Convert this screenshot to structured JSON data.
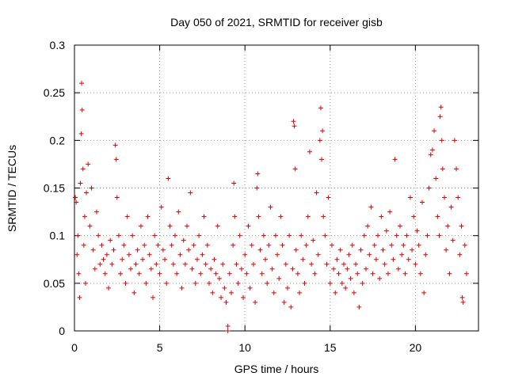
{
  "chart_data": {
    "type": "scatter",
    "title": "Day 050 of 2021, SRMTID for receiver gisb",
    "xlabel": "GPS time / hours",
    "ylabel": "SRMTID / TECUs",
    "xlim": [
      0,
      23.7
    ],
    "ylim": [
      0,
      0.3
    ],
    "x_ticks": [
      0,
      5,
      10,
      15,
      20
    ],
    "y_ticks": [
      0,
      0.05,
      0.1,
      0.15,
      0.2,
      0.25,
      0.3
    ],
    "x_tick_labels": [
      "0",
      "5",
      "10",
      "15",
      "20"
    ],
    "y_tick_labels": [
      "0",
      "0.05",
      "0.1",
      "0.15",
      "0.2",
      "0.25",
      "0.3"
    ],
    "grid": true,
    "marker": "+",
    "series": [
      {
        "name": "SRMTID",
        "color": "#e00000",
        "points": [
          [
            0.05,
            0.14
          ],
          [
            0.1,
            0.135
          ],
          [
            0.15,
            0.08
          ],
          [
            0.2,
            0.1
          ],
          [
            0.25,
            0.06
          ],
          [
            0.3,
            0.035
          ],
          [
            0.35,
            0.155
          ],
          [
            0.4,
            0.207
          ],
          [
            0.42,
            0.26
          ],
          [
            0.45,
            0.232
          ],
          [
            0.5,
            0.17
          ],
          [
            0.55,
            0.09
          ],
          [
            0.6,
            0.12
          ],
          [
            0.65,
            0.05
          ],
          [
            0.7,
            0.145
          ],
          [
            0.8,
            0.175
          ],
          [
            0.9,
            0.11
          ],
          [
            1.0,
            0.15
          ],
          [
            1.1,
            0.085
          ],
          [
            1.2,
            0.065
          ],
          [
            1.3,
            0.125
          ],
          [
            1.4,
            0.1
          ],
          [
            1.5,
            0.07
          ],
          [
            1.6,
            0.09
          ],
          [
            1.7,
            0.075
          ],
          [
            1.8,
            0.06
          ],
          [
            1.9,
            0.08
          ],
          [
            2.0,
            0.045
          ],
          [
            2.1,
            0.095
          ],
          [
            2.2,
            0.07
          ],
          [
            2.3,
            0.085
          ],
          [
            2.4,
            0.195
          ],
          [
            2.45,
            0.18
          ],
          [
            2.5,
            0.14
          ],
          [
            2.6,
            0.1
          ],
          [
            2.7,
            0.06
          ],
          [
            2.8,
            0.075
          ],
          [
            2.9,
            0.09
          ],
          [
            3.0,
            0.05
          ],
          [
            3.1,
            0.12
          ],
          [
            3.2,
            0.08
          ],
          [
            3.3,
            0.065
          ],
          [
            3.4,
            0.1
          ],
          [
            3.5,
            0.04
          ],
          [
            3.6,
            0.07
          ],
          [
            3.7,
            0.085
          ],
          [
            3.8,
            0.06
          ],
          [
            3.9,
            0.11
          ],
          [
            4.0,
            0.075
          ],
          [
            4.1,
            0.09
          ],
          [
            4.2,
            0.05
          ],
          [
            4.3,
            0.12
          ],
          [
            4.4,
            0.08
          ],
          [
            4.5,
            0.065
          ],
          [
            4.6,
            0.035
          ],
          [
            4.7,
            0.1
          ],
          [
            4.8,
            0.07
          ],
          [
            4.9,
            0.09
          ],
          [
            5.0,
            0.06
          ],
          [
            5.1,
            0.13
          ],
          [
            5.2,
            0.085
          ],
          [
            5.3,
            0.075
          ],
          [
            5.4,
            0.05
          ],
          [
            5.5,
            0.16
          ],
          [
            5.6,
            0.11
          ],
          [
            5.7,
            0.09
          ],
          [
            5.8,
            0.07
          ],
          [
            5.9,
            0.1
          ],
          [
            6.0,
            0.06
          ],
          [
            6.1,
            0.125
          ],
          [
            6.2,
            0.08
          ],
          [
            6.3,
            0.045
          ],
          [
            6.4,
            0.095
          ],
          [
            6.5,
            0.07
          ],
          [
            6.6,
            0.11
          ],
          [
            6.7,
            0.085
          ],
          [
            6.8,
            0.145
          ],
          [
            6.9,
            0.065
          ],
          [
            7.0,
            0.09
          ],
          [
            7.1,
            0.05
          ],
          [
            7.2,
            0.075
          ],
          [
            7.3,
            0.1
          ],
          [
            7.4,
            0.06
          ],
          [
            7.5,
            0.08
          ],
          [
            7.6,
            0.12
          ],
          [
            7.7,
            0.07
          ],
          [
            7.8,
            0.09
          ],
          [
            7.9,
            0.05
          ],
          [
            8.0,
            0.065
          ],
          [
            8.1,
            0.04
          ],
          [
            8.2,
            0.075
          ],
          [
            8.3,
            0.06
          ],
          [
            8.4,
            0.11
          ],
          [
            8.5,
            0.055
          ],
          [
            8.6,
            0.035
          ],
          [
            8.7,
            0.07
          ],
          [
            8.8,
            0.045
          ],
          [
            8.9,
            0.03
          ],
          [
            9.0,
            0.0
          ],
          [
            9.0,
            0.005
          ],
          [
            9.1,
            0.06
          ],
          [
            9.2,
            0.04
          ],
          [
            9.3,
            0.09
          ],
          [
            9.35,
            0.155
          ],
          [
            9.4,
            0.12
          ],
          [
            9.5,
            0.07
          ],
          [
            9.6,
            0.05
          ],
          [
            9.7,
            0.1
          ],
          [
            9.8,
            0.065
          ],
          [
            9.9,
            0.035
          ],
          [
            10.0,
            0.08
          ],
          [
            10.1,
            0.06
          ],
          [
            10.2,
            0.11
          ],
          [
            10.3,
            0.045
          ],
          [
            10.4,
            0.09
          ],
          [
            10.5,
            0.07
          ],
          [
            10.6,
            0.03
          ],
          [
            10.7,
            0.15
          ],
          [
            10.75,
            0.165
          ],
          [
            10.8,
            0.12
          ],
          [
            10.9,
            0.085
          ],
          [
            11.0,
            0.06
          ],
          [
            11.1,
            0.1
          ],
          [
            11.2,
            0.075
          ],
          [
            11.3,
            0.05
          ],
          [
            11.4,
            0.09
          ],
          [
            11.5,
            0.13
          ],
          [
            11.6,
            0.065
          ],
          [
            11.7,
            0.04
          ],
          [
            11.8,
            0.1
          ],
          [
            11.9,
            0.08
          ],
          [
            12.0,
            0.055
          ],
          [
            12.1,
            0.12
          ],
          [
            12.2,
            0.09
          ],
          [
            12.3,
            0.03
          ],
          [
            12.4,
            0.07
          ],
          [
            12.5,
            0.045
          ],
          [
            12.6,
            0.1
          ],
          [
            12.7,
            0.025
          ],
          [
            12.8,
            0.065
          ],
          [
            12.85,
            0.22
          ],
          [
            12.9,
            0.215
          ],
          [
            12.95,
            0.17
          ],
          [
            13.0,
            0.085
          ],
          [
            13.1,
            0.06
          ],
          [
            13.2,
            0.04
          ],
          [
            13.3,
            0.1
          ],
          [
            13.4,
            0.075
          ],
          [
            13.5,
            0.05
          ],
          [
            13.6,
            0.09
          ],
          [
            13.7,
            0.12
          ],
          [
            13.8,
            0.188
          ],
          [
            13.9,
            0.07
          ],
          [
            14.0,
            0.095
          ],
          [
            14.1,
            0.06
          ],
          [
            14.2,
            0.145
          ],
          [
            14.3,
            0.08
          ],
          [
            14.4,
            0.2
          ],
          [
            14.45,
            0.234
          ],
          [
            14.5,
            0.18
          ],
          [
            14.55,
            0.21
          ],
          [
            14.6,
            0.12
          ],
          [
            14.7,
            0.1
          ],
          [
            14.8,
            0.07
          ],
          [
            14.9,
            0.14
          ],
          [
            15.0,
            0.05
          ],
          [
            15.1,
            0.09
          ],
          [
            15.2,
            0.065
          ],
          [
            15.3,
            0.04
          ],
          [
            15.4,
            0.075
          ],
          [
            15.5,
            0.06
          ],
          [
            15.6,
            0.085
          ],
          [
            15.7,
            0.05
          ],
          [
            15.8,
            0.07
          ],
          [
            15.9,
            0.045
          ],
          [
            16.0,
            0.065
          ],
          [
            16.1,
            0.08
          ],
          [
            16.2,
            0.055
          ],
          [
            16.3,
            0.09
          ],
          [
            16.4,
            0.04
          ],
          [
            16.5,
            0.07
          ],
          [
            16.6,
            0.06
          ],
          [
            16.7,
            0.025
          ],
          [
            16.8,
            0.085
          ],
          [
            16.9,
            0.05
          ],
          [
            17.0,
            0.1
          ],
          [
            17.1,
            0.065
          ],
          [
            17.2,
            0.11
          ],
          [
            17.3,
            0.08
          ],
          [
            17.4,
            0.13
          ],
          [
            17.5,
            0.06
          ],
          [
            17.6,
            0.09
          ],
          [
            17.7,
            0.075
          ],
          [
            17.8,
            0.1
          ],
          [
            17.9,
            0.055
          ],
          [
            18.0,
            0.12
          ],
          [
            18.1,
            0.085
          ],
          [
            18.2,
            0.07
          ],
          [
            18.3,
            0.105
          ],
          [
            18.4,
            0.06
          ],
          [
            18.5,
            0.125
          ],
          [
            18.6,
            0.09
          ],
          [
            18.7,
            0.075
          ],
          [
            18.8,
            0.18
          ],
          [
            18.9,
            0.1
          ],
          [
            19.0,
            0.065
          ],
          [
            19.1,
            0.11
          ],
          [
            19.2,
            0.08
          ],
          [
            19.3,
            0.09
          ],
          [
            19.4,
            0.06
          ],
          [
            19.5,
            0.1
          ],
          [
            19.6,
            0.075
          ],
          [
            19.7,
            0.14
          ],
          [
            19.8,
            0.085
          ],
          [
            19.9,
            0.12
          ],
          [
            20.0,
            0.07
          ],
          [
            20.1,
            0.105
          ],
          [
            20.2,
            0.09
          ],
          [
            20.3,
            0.06
          ],
          [
            20.4,
            0.135
          ],
          [
            20.5,
            0.04
          ],
          [
            20.6,
            0.08
          ],
          [
            20.7,
            0.1
          ],
          [
            20.8,
            0.15
          ],
          [
            20.9,
            0.185
          ],
          [
            21.0,
            0.19
          ],
          [
            21.1,
            0.21
          ],
          [
            21.2,
            0.16
          ],
          [
            21.3,
            0.12
          ],
          [
            21.4,
            0.1
          ],
          [
            21.45,
            0.225
          ],
          [
            21.5,
            0.235
          ],
          [
            21.55,
            0.2
          ],
          [
            21.6,
            0.17
          ],
          [
            21.7,
            0.14
          ],
          [
            21.8,
            0.085
          ],
          [
            21.9,
            0.11
          ],
          [
            22.0,
            0.06
          ],
          [
            22.1,
            0.13
          ],
          [
            22.2,
            0.095
          ],
          [
            22.3,
            0.2
          ],
          [
            22.4,
            0.17
          ],
          [
            22.5,
            0.14
          ],
          [
            22.6,
            0.08
          ],
          [
            22.7,
            0.11
          ],
          [
            22.75,
            0.035
          ],
          [
            22.8,
            0.03
          ],
          [
            22.9,
            0.09
          ],
          [
            23.0,
            0.06
          ]
        ]
      }
    ]
  }
}
